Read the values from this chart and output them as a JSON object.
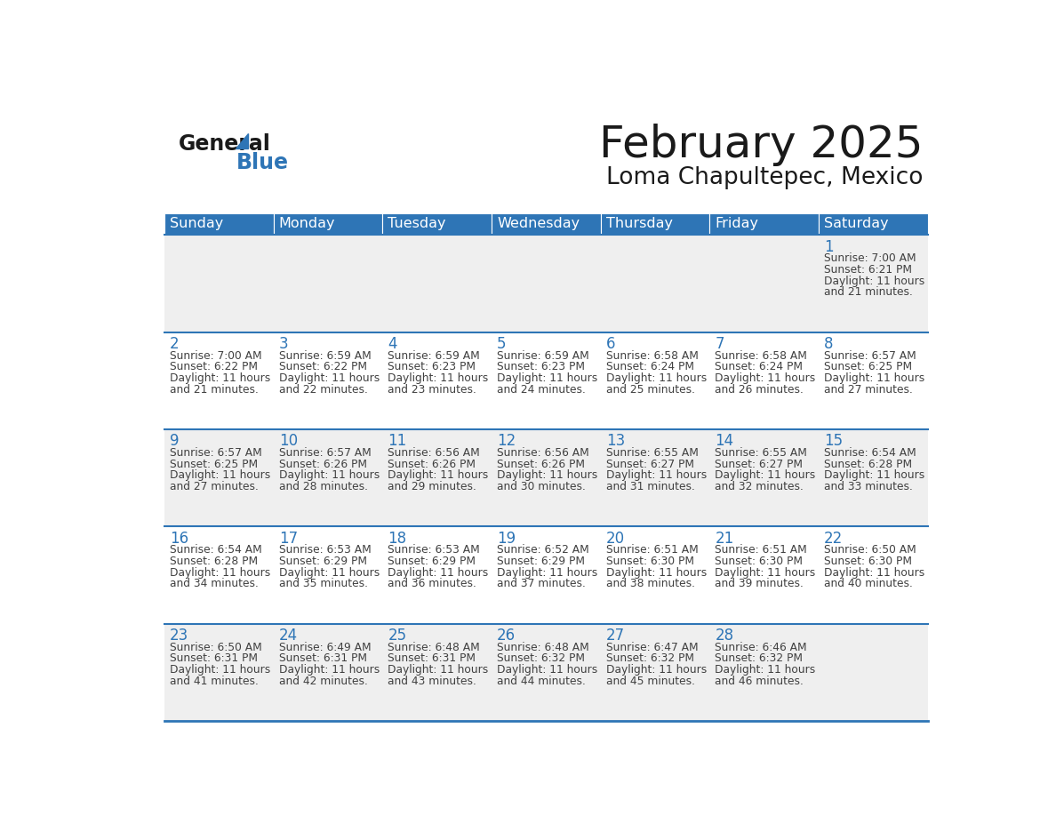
{
  "title": "February 2025",
  "subtitle": "Loma Chapultepec, Mexico",
  "days_of_week": [
    "Sunday",
    "Monday",
    "Tuesday",
    "Wednesday",
    "Thursday",
    "Friday",
    "Saturday"
  ],
  "header_bg": "#2E75B6",
  "header_text_color": "#FFFFFF",
  "row_bg_white": "#FFFFFF",
  "row_bg_gray": "#EFEFEF",
  "cell_border_color": "#2E75B6",
  "day_num_color": "#2E75B6",
  "info_text_color": "#404040",
  "title_color": "#1a1a1a",
  "subtitle_color": "#1a1a1a",
  "logo_general_color": "#1a1a1a",
  "logo_blue_color": "#2E75B6",
  "logo_triangle_color": "#2E75B6",
  "calendar": [
    [
      {
        "day": null
      },
      {
        "day": null
      },
      {
        "day": null
      },
      {
        "day": null
      },
      {
        "day": null
      },
      {
        "day": null
      },
      {
        "day": 1,
        "sunrise": "7:00 AM",
        "sunset": "6:21 PM",
        "daylight_hours": 11,
        "daylight_minutes": 21
      }
    ],
    [
      {
        "day": 2,
        "sunrise": "7:00 AM",
        "sunset": "6:22 PM",
        "daylight_hours": 11,
        "daylight_minutes": 21
      },
      {
        "day": 3,
        "sunrise": "6:59 AM",
        "sunset": "6:22 PM",
        "daylight_hours": 11,
        "daylight_minutes": 22
      },
      {
        "day": 4,
        "sunrise": "6:59 AM",
        "sunset": "6:23 PM",
        "daylight_hours": 11,
        "daylight_minutes": 23
      },
      {
        "day": 5,
        "sunrise": "6:59 AM",
        "sunset": "6:23 PM",
        "daylight_hours": 11,
        "daylight_minutes": 24
      },
      {
        "day": 6,
        "sunrise": "6:58 AM",
        "sunset": "6:24 PM",
        "daylight_hours": 11,
        "daylight_minutes": 25
      },
      {
        "day": 7,
        "sunrise": "6:58 AM",
        "sunset": "6:24 PM",
        "daylight_hours": 11,
        "daylight_minutes": 26
      },
      {
        "day": 8,
        "sunrise": "6:57 AM",
        "sunset": "6:25 PM",
        "daylight_hours": 11,
        "daylight_minutes": 27
      }
    ],
    [
      {
        "day": 9,
        "sunrise": "6:57 AM",
        "sunset": "6:25 PM",
        "daylight_hours": 11,
        "daylight_minutes": 27
      },
      {
        "day": 10,
        "sunrise": "6:57 AM",
        "sunset": "6:26 PM",
        "daylight_hours": 11,
        "daylight_minutes": 28
      },
      {
        "day": 11,
        "sunrise": "6:56 AM",
        "sunset": "6:26 PM",
        "daylight_hours": 11,
        "daylight_minutes": 29
      },
      {
        "day": 12,
        "sunrise": "6:56 AM",
        "sunset": "6:26 PM",
        "daylight_hours": 11,
        "daylight_minutes": 30
      },
      {
        "day": 13,
        "sunrise": "6:55 AM",
        "sunset": "6:27 PM",
        "daylight_hours": 11,
        "daylight_minutes": 31
      },
      {
        "day": 14,
        "sunrise": "6:55 AM",
        "sunset": "6:27 PM",
        "daylight_hours": 11,
        "daylight_minutes": 32
      },
      {
        "day": 15,
        "sunrise": "6:54 AM",
        "sunset": "6:28 PM",
        "daylight_hours": 11,
        "daylight_minutes": 33
      }
    ],
    [
      {
        "day": 16,
        "sunrise": "6:54 AM",
        "sunset": "6:28 PM",
        "daylight_hours": 11,
        "daylight_minutes": 34
      },
      {
        "day": 17,
        "sunrise": "6:53 AM",
        "sunset": "6:29 PM",
        "daylight_hours": 11,
        "daylight_minutes": 35
      },
      {
        "day": 18,
        "sunrise": "6:53 AM",
        "sunset": "6:29 PM",
        "daylight_hours": 11,
        "daylight_minutes": 36
      },
      {
        "day": 19,
        "sunrise": "6:52 AM",
        "sunset": "6:29 PM",
        "daylight_hours": 11,
        "daylight_minutes": 37
      },
      {
        "day": 20,
        "sunrise": "6:51 AM",
        "sunset": "6:30 PM",
        "daylight_hours": 11,
        "daylight_minutes": 38
      },
      {
        "day": 21,
        "sunrise": "6:51 AM",
        "sunset": "6:30 PM",
        "daylight_hours": 11,
        "daylight_minutes": 39
      },
      {
        "day": 22,
        "sunrise": "6:50 AM",
        "sunset": "6:30 PM",
        "daylight_hours": 11,
        "daylight_minutes": 40
      }
    ],
    [
      {
        "day": 23,
        "sunrise": "6:50 AM",
        "sunset": "6:31 PM",
        "daylight_hours": 11,
        "daylight_minutes": 41
      },
      {
        "day": 24,
        "sunrise": "6:49 AM",
        "sunset": "6:31 PM",
        "daylight_hours": 11,
        "daylight_minutes": 42
      },
      {
        "day": 25,
        "sunrise": "6:48 AM",
        "sunset": "6:31 PM",
        "daylight_hours": 11,
        "daylight_minutes": 43
      },
      {
        "day": 26,
        "sunrise": "6:48 AM",
        "sunset": "6:32 PM",
        "daylight_hours": 11,
        "daylight_minutes": 44
      },
      {
        "day": 27,
        "sunrise": "6:47 AM",
        "sunset": "6:32 PM",
        "daylight_hours": 11,
        "daylight_minutes": 45
      },
      {
        "day": 28,
        "sunrise": "6:46 AM",
        "sunset": "6:32 PM",
        "daylight_hours": 11,
        "daylight_minutes": 46
      },
      {
        "day": null
      }
    ]
  ]
}
